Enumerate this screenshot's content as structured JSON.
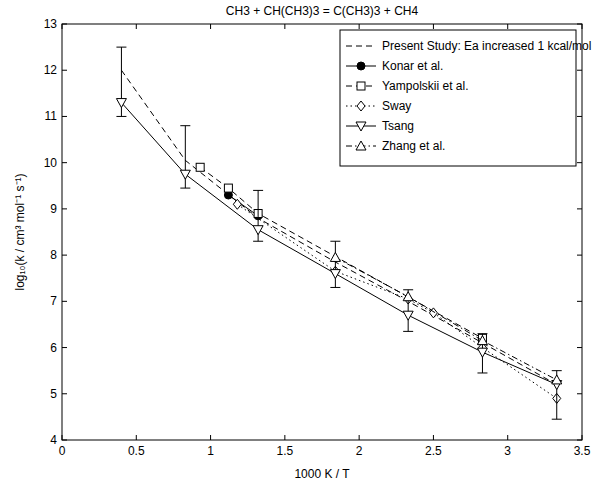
{
  "chart_data": {
    "type": "line",
    "title": "CH3 + CH(CH3)3 = C(CH3)3 + CH4",
    "x_label": "1000 K / T",
    "y_label": "log₁₀(k / cm³ mol⁻¹ s⁻¹)",
    "xlim": [
      0,
      3.5
    ],
    "ylim": [
      4,
      13
    ],
    "xticks": [
      0,
      0.5,
      1,
      1.5,
      2,
      2.5,
      3,
      3.5
    ],
    "yticks": [
      4,
      5,
      6,
      7,
      8,
      9,
      10,
      11,
      12,
      13
    ],
    "legend": "upper-right",
    "grid": false,
    "series": [
      {
        "name": "Present Study: Ea increased 1 kcal/mol",
        "color": "#000000",
        "line_style": "dashed",
        "marker": "none",
        "x": [
          0.4,
          0.83,
          1.32,
          1.84,
          2.33,
          2.83,
          3.33
        ],
        "values": [
          12.0,
          10.05,
          8.8,
          7.85,
          7.0,
          6.1,
          5.2
        ]
      },
      {
        "name": "Konar et al.",
        "color": "#000000",
        "line_style": "solid",
        "marker": "circle-filled",
        "x": [
          1.12,
          1.32
        ],
        "values": [
          9.3,
          8.85
        ]
      },
      {
        "name": "Yampolskii et al.",
        "color": "#000000",
        "line_style": "dashed",
        "marker": "square",
        "x": [
          0.93,
          1.12,
          1.32,
          2.83
        ],
        "values": [
          9.9,
          9.45,
          8.9,
          6.2
        ]
      },
      {
        "name": "Sway",
        "color": "#000000",
        "line_style": "dotted",
        "marker": "diamond",
        "x": [
          1.18,
          1.84,
          2.33,
          2.5,
          2.83,
          3.33
        ],
        "values": [
          9.1,
          7.65,
          7.05,
          6.75,
          6.0,
          4.9
        ]
      },
      {
        "name": "Tsang",
        "color": "#000000",
        "line_style": "solid",
        "marker": "triangle-down",
        "x": [
          0.4,
          0.83,
          1.32,
          1.84,
          2.33,
          2.83,
          3.33
        ],
        "values": [
          11.3,
          9.75,
          8.55,
          7.6,
          6.7,
          5.9,
          5.2
        ],
        "error_minus": [
          0.3,
          0.3,
          0.25,
          0.3,
          0.35,
          0.45,
          0.75
        ],
        "error_plus": [
          1.2,
          1.05,
          0.85,
          0.7,
          0.55,
          0.4,
          0.3
        ]
      },
      {
        "name": "Zhang et al.",
        "color": "#000000",
        "line_style": "dashdot",
        "marker": "triangle-up",
        "x": [
          1.84,
          2.33,
          2.83,
          3.33
        ],
        "values": [
          7.95,
          7.1,
          6.15,
          5.3
        ]
      }
    ]
  }
}
